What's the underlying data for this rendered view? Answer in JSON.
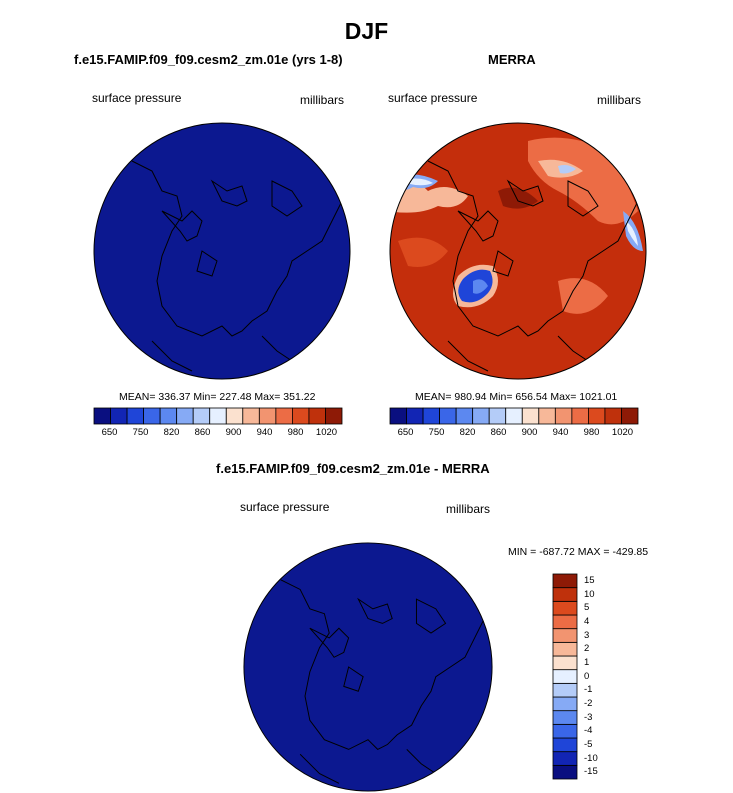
{
  "title": "DJF",
  "panels": [
    {
      "title": "f.e15.FAMIP.f09_f09.cesm2_zm.01e (yrs 1-8)",
      "variable": "surface pressure",
      "units": "millibars",
      "stats": "MEAN= 336.37  Min= 227.48  Max= 351.22",
      "fill": "#0c1890"
    },
    {
      "title": "MERRA",
      "variable": "surface pressure",
      "units": "millibars",
      "stats": "MEAN= 980.94  Min= 656.54  Max= 1021.01",
      "fill": "#c42e0c"
    },
    {
      "title": "f.e15.FAMIP.f09_f09.cesm2_zm.01e - MERRA",
      "variable": "surface pressure",
      "units": "millibars",
      "stats": "MIN = -687.72 MAX = -429.85",
      "fill": "#0c1890"
    }
  ],
  "colorbar_abs": {
    "colors": [
      "#0a0f80",
      "#1225b4",
      "#1f45d8",
      "#3a66e8",
      "#5c88f0",
      "#86aaf5",
      "#b4ccf8",
      "#e6f0ff",
      "#fbe1cf",
      "#f7b899",
      "#f29470",
      "#ec6c45",
      "#dc4a1e",
      "#bf310c",
      "#8e1a06"
    ],
    "tick_labels": [
      "650",
      "750",
      "820",
      "860",
      "900",
      "940",
      "980",
      "1020"
    ]
  },
  "colorbar_diff": {
    "colors": [
      "#0a0f80",
      "#1225b4",
      "#1f45d8",
      "#3a66e8",
      "#5c88f0",
      "#86aaf5",
      "#b4ccf8",
      "#e6f0ff",
      "#fbe1cf",
      "#f7b899",
      "#f29470",
      "#ec6c45",
      "#dc4a1e",
      "#bf310c",
      "#8e1a06"
    ],
    "tick_labels": [
      "-15",
      "-10",
      "-5",
      "-4",
      "-3",
      "-2",
      "-1",
      "0",
      "1",
      "2",
      "3",
      "4",
      "5",
      "10",
      "15"
    ]
  },
  "chart_data": [
    {
      "type": "heatmap",
      "title": "f.e15.FAMIP.f09_f09.cesm2_zm.01e (yrs 1-8)",
      "variable": "surface pressure",
      "units": "millibars",
      "projection": "polar stereographic (north pole)",
      "mean": 336.37,
      "min": 227.48,
      "max": 351.22,
      "levels": [
        650,
        700,
        750,
        800,
        820,
        840,
        860,
        880,
        900,
        920,
        940,
        960,
        980,
        1000,
        1020
      ]
    },
    {
      "type": "heatmap",
      "title": "MERRA",
      "variable": "surface pressure",
      "units": "millibars",
      "projection": "polar stereographic (north pole)",
      "mean": 980.94,
      "min": 656.54,
      "max": 1021.01,
      "levels": [
        650,
        700,
        750,
        800,
        820,
        840,
        860,
        880,
        900,
        920,
        940,
        960,
        980,
        1000,
        1020
      ]
    },
    {
      "type": "heatmap",
      "title": "f.e15.FAMIP.f09_f09.cesm2_zm.01e - MERRA",
      "variable": "surface pressure",
      "units": "millibars",
      "projection": "polar stereographic (north pole)",
      "min": -687.72,
      "max": -429.85,
      "levels": [
        -15,
        -10,
        -5,
        -4,
        -3,
        -2,
        -1,
        0,
        1,
        2,
        3,
        4,
        5,
        10,
        15
      ]
    }
  ]
}
